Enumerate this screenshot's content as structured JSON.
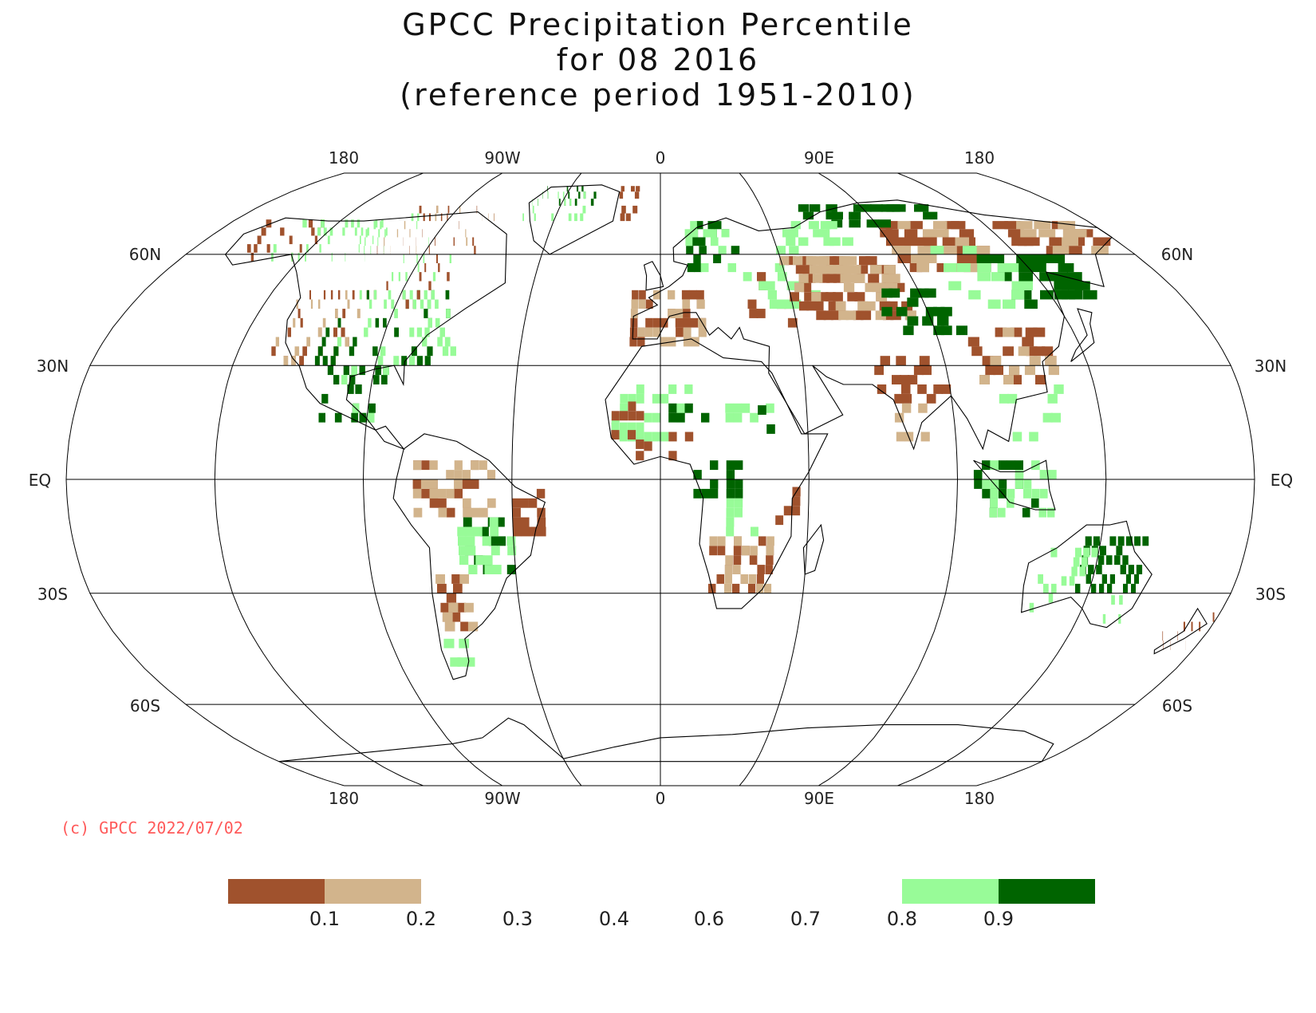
{
  "title": {
    "line1": "GPCC Precipitation Percentile",
    "line2": "for 08 2016",
    "line3": "(reference period 1951-2010)"
  },
  "credit": "(c) GPCC 2022/07/02",
  "map": {
    "projection": "Robinson",
    "longitude_labels_top": [
      "180",
      "90W",
      "0",
      "90E",
      "180"
    ],
    "longitude_labels_bottom": [
      "180",
      "90W",
      "0",
      "90E",
      "180"
    ],
    "latitude_labels_left": [
      "60N",
      "30N",
      "EQ",
      "30S",
      "60S"
    ],
    "latitude_labels_right": [
      "60N",
      "30N",
      "EQ",
      "30S",
      "60S"
    ],
    "graticule": true,
    "coastlines": true
  },
  "legend": {
    "tick_labels": [
      "0.1",
      "0.2",
      "0.3",
      "0.4",
      "0.6",
      "0.7",
      "0.8",
      "0.9"
    ],
    "classes": [
      {
        "range": "< 0.1",
        "color": "#a0522d"
      },
      {
        "range": "0.1 - 0.2",
        "color": "#d2b48c"
      },
      {
        "range": "0.2 - 0.8",
        "color": "#ffffff"
      },
      {
        "range": "0.8 - 0.9",
        "color": "#98fb98"
      },
      {
        "range": "> 0.9",
        "color": "#006400"
      }
    ]
  },
  "colors": {
    "very_dry": "#a0522d",
    "dry": "#d2b48c",
    "wet": "#98fb98",
    "very_wet": "#006400",
    "credit": "#ff5a5a"
  }
}
